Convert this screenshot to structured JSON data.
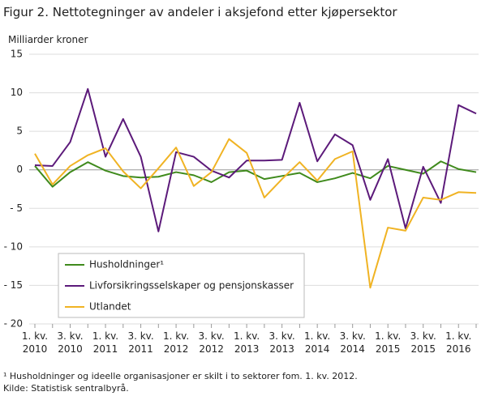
{
  "chart_data": {
    "type": "line",
    "title": "Figur 2. Nettotegninger av andeler i aksjefond etter kjøpersektor",
    "y_axis_label": "Milliarder  kroner",
    "categories": [
      "1. kv. 2010",
      null,
      "3. kv. 2010",
      null,
      "1. kv. 2011",
      null,
      "3. kv. 2011",
      null,
      "1. kv. 2012",
      null,
      "3. kv. 2012",
      null,
      "1. kv. 2013",
      null,
      "3. kv. 2013",
      null,
      "1. kv. 2014",
      null,
      "3. kv. 2014",
      null,
      "1. kv. 2015",
      null,
      "3. kv. 2015",
      null,
      "1. kv. 2016",
      null
    ],
    "series": [
      {
        "name": "Husholdninger¹",
        "color": "#3f8a1c",
        "values": [
          0.5,
          -2.2,
          -0.3,
          1.0,
          -0.1,
          -0.8,
          -1.0,
          -0.9,
          -0.3,
          -0.7,
          -1.6,
          -0.3,
          -0.1,
          -1.2,
          -0.8,
          -0.4,
          -1.6,
          -1.1,
          -0.4,
          -1.1,
          0.5,
          0.0,
          -0.5,
          1.1,
          0.1,
          -0.3
        ]
      },
      {
        "name": "Livforsikringsselskaper og pensjonskasser",
        "color": "#5c1a7a",
        "values": [
          0.6,
          0.5,
          3.6,
          10.5,
          1.7,
          6.6,
          1.7,
          -8.0,
          2.3,
          1.7,
          -0.1,
          -1.0,
          1.2,
          1.2,
          1.3,
          8.7,
          1.1,
          4.6,
          3.2,
          -3.9,
          1.4,
          -7.6,
          0.4,
          -4.3,
          8.4,
          7.3
        ]
      },
      {
        "name": "Utlandet",
        "color": "#f0b323",
        "values": [
          2.1,
          -1.9,
          0.5,
          1.9,
          2.8,
          -0.2,
          -2.4,
          0.2,
          2.9,
          -2.1,
          -0.3,
          4.0,
          2.2,
          -3.6,
          -1.2,
          1.0,
          -1.4,
          1.4,
          2.4,
          -15.3,
          -7.5,
          -7.9,
          -3.6,
          -3.9,
          -2.9,
          -3.0
        ]
      }
    ],
    "ylim": [
      -20,
      15
    ],
    "yticks": [
      {
        "value": -20,
        "label": "- 20"
      },
      {
        "value": -15,
        "label": "- 15"
      },
      {
        "value": -10,
        "label": "- 10"
      },
      {
        "value": -5,
        "label": "- 5"
      },
      0,
      5,
      10,
      15
    ],
    "grid": true,
    "footnote": "¹ Husholdninger og ideelle organisasjoner er skilt i to sektorer fom. 1. kv. 2012.",
    "source": "Kilde: Statistisk sentralbyrå."
  }
}
